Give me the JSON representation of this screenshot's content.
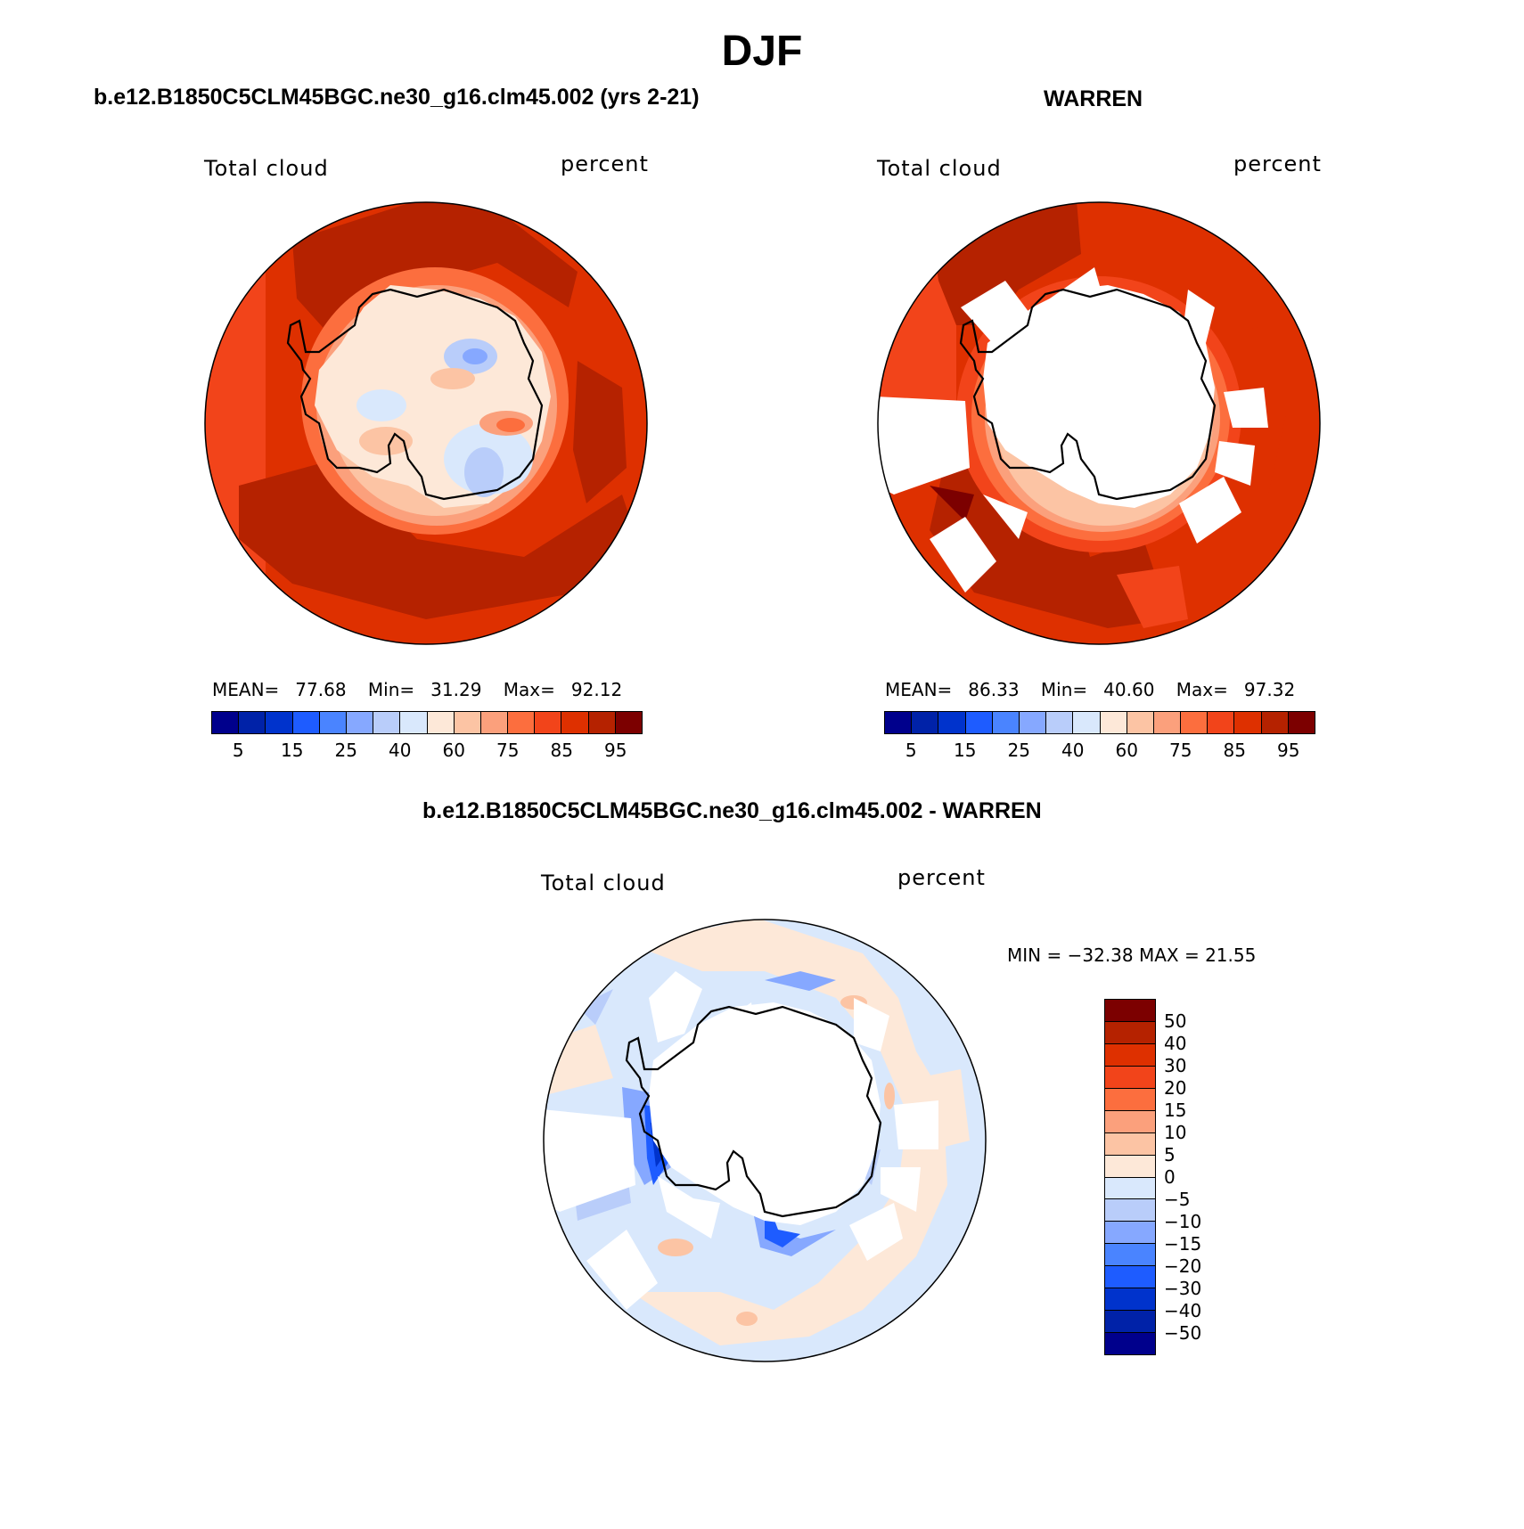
{
  "figure": {
    "title": "DJF",
    "comparison_title": "b.e12.B1850C5CLM45BGC.ne30_g16.clm45.002 - WARREN"
  },
  "panels": {
    "model": {
      "case_title": "b.e12.B1850C5CLM45BGC.ne30_g16.clm45.002 (yrs 2-21)",
      "variable": "Total cloud",
      "units": "percent",
      "stats": {
        "mean_label": "MEAN=",
        "mean": "77.68",
        "min_label": "Min=",
        "min": "31.29",
        "max_label": "Max=",
        "max": "92.12"
      }
    },
    "obs": {
      "case_title": "WARREN",
      "variable": "Total cloud",
      "units": "percent",
      "stats": {
        "mean_label": "MEAN=",
        "mean": "86.33",
        "min_label": "Min=",
        "min": "40.60",
        "max_label": "Max=",
        "max": "97.32"
      }
    },
    "diff": {
      "variable": "Total cloud",
      "units": "percent",
      "minmax_text": "MIN = −32.38 MAX =   21.55"
    }
  },
  "chart_data": [
    {
      "type": "heatmap",
      "title": "b.e12.B1850C5CLM45BGC.ne30_g16.clm45.002 (yrs 2-21)",
      "subtitle": "Total cloud",
      "units": "percent",
      "projection": "south-polar stereographic",
      "stats": {
        "mean": 77.68,
        "min": 31.29,
        "max": 92.12
      },
      "colorbar": {
        "orientation": "horizontal",
        "tick_labels": [
          "5",
          "15",
          "25",
          "40",
          "60",
          "75",
          "85",
          "95"
        ],
        "colors": [
          "#00008c",
          "#0022a8",
          "#0033cc",
          "#1e5cff",
          "#4a84ff",
          "#86a8ff",
          "#b9cdfa",
          "#d9e8fc",
          "#fde8d8",
          "#fcc4a4",
          "#fba07c",
          "#fc6e3e",
          "#f2441a",
          "#de3000",
          "#b52200",
          "#7c0000"
        ]
      },
      "regions": {
        "ocean_band": {
          "description": "Southern Ocean",
          "approx_value": 85
        },
        "sector_pacific": {
          "approx_value": 92
        },
        "sector_atlantic": {
          "approx_value": 92
        },
        "antarctic_interior": {
          "approx_value": 50
        },
        "east_antarctic_min": {
          "approx_value": 31.29
        }
      }
    },
    {
      "type": "heatmap",
      "title": "WARREN",
      "subtitle": "Total cloud",
      "units": "percent",
      "projection": "south-polar stereographic",
      "stats": {
        "mean": 86.33,
        "min": 40.6,
        "max": 97.32
      },
      "colorbar": {
        "orientation": "horizontal",
        "tick_labels": [
          "5",
          "15",
          "25",
          "40",
          "60",
          "75",
          "85",
          "95"
        ],
        "colors": [
          "#00008c",
          "#0022a8",
          "#0033cc",
          "#1e5cff",
          "#4a84ff",
          "#86a8ff",
          "#b9cdfa",
          "#d9e8fc",
          "#fde8d8",
          "#fcc4a4",
          "#fba07c",
          "#fc6e3e",
          "#f2441a",
          "#de3000",
          "#b52200",
          "#7c0000"
        ]
      },
      "regions": {
        "ocean_band": {
          "approx_value": 85
        },
        "amundsen_sector": {
          "approx_value": 95
        },
        "antarctic_continent": {
          "description": "missing data (white)"
        }
      }
    },
    {
      "type": "heatmap",
      "title": "b.e12.B1850C5CLM45BGC.ne30_g16.clm45.002 - WARREN",
      "subtitle": "Total cloud",
      "units": "percent",
      "projection": "south-polar stereographic",
      "stats": {
        "min": -32.38,
        "max": 21.55
      },
      "colorbar": {
        "orientation": "vertical",
        "tick_labels": [
          "50",
          "40",
          "30",
          "20",
          "15",
          "10",
          "5",
          "0",
          "−5",
          "−10",
          "−15",
          "−20",
          "−30",
          "−40",
          "−50"
        ],
        "colors": [
          "#7c0000",
          "#b52200",
          "#de3000",
          "#f2441a",
          "#fc6e3e",
          "#fba07c",
          "#fcc4a4",
          "#fde8d8",
          "#d9e8fc",
          "#b9cdfa",
          "#86a8ff",
          "#4a84ff",
          "#1e5cff",
          "#0033cc",
          "#0022a8",
          "#00008c"
        ]
      },
      "regions": {
        "southern_ocean": {
          "approx_value": -3
        },
        "northern_ring": {
          "approx_value": 3
        },
        "bellingshausen_min": {
          "approx_value": -32.38
        },
        "ross_sea_edge": {
          "approx_value": -25
        },
        "antarctic_continent": {
          "description": "missing data (white)"
        }
      }
    }
  ]
}
